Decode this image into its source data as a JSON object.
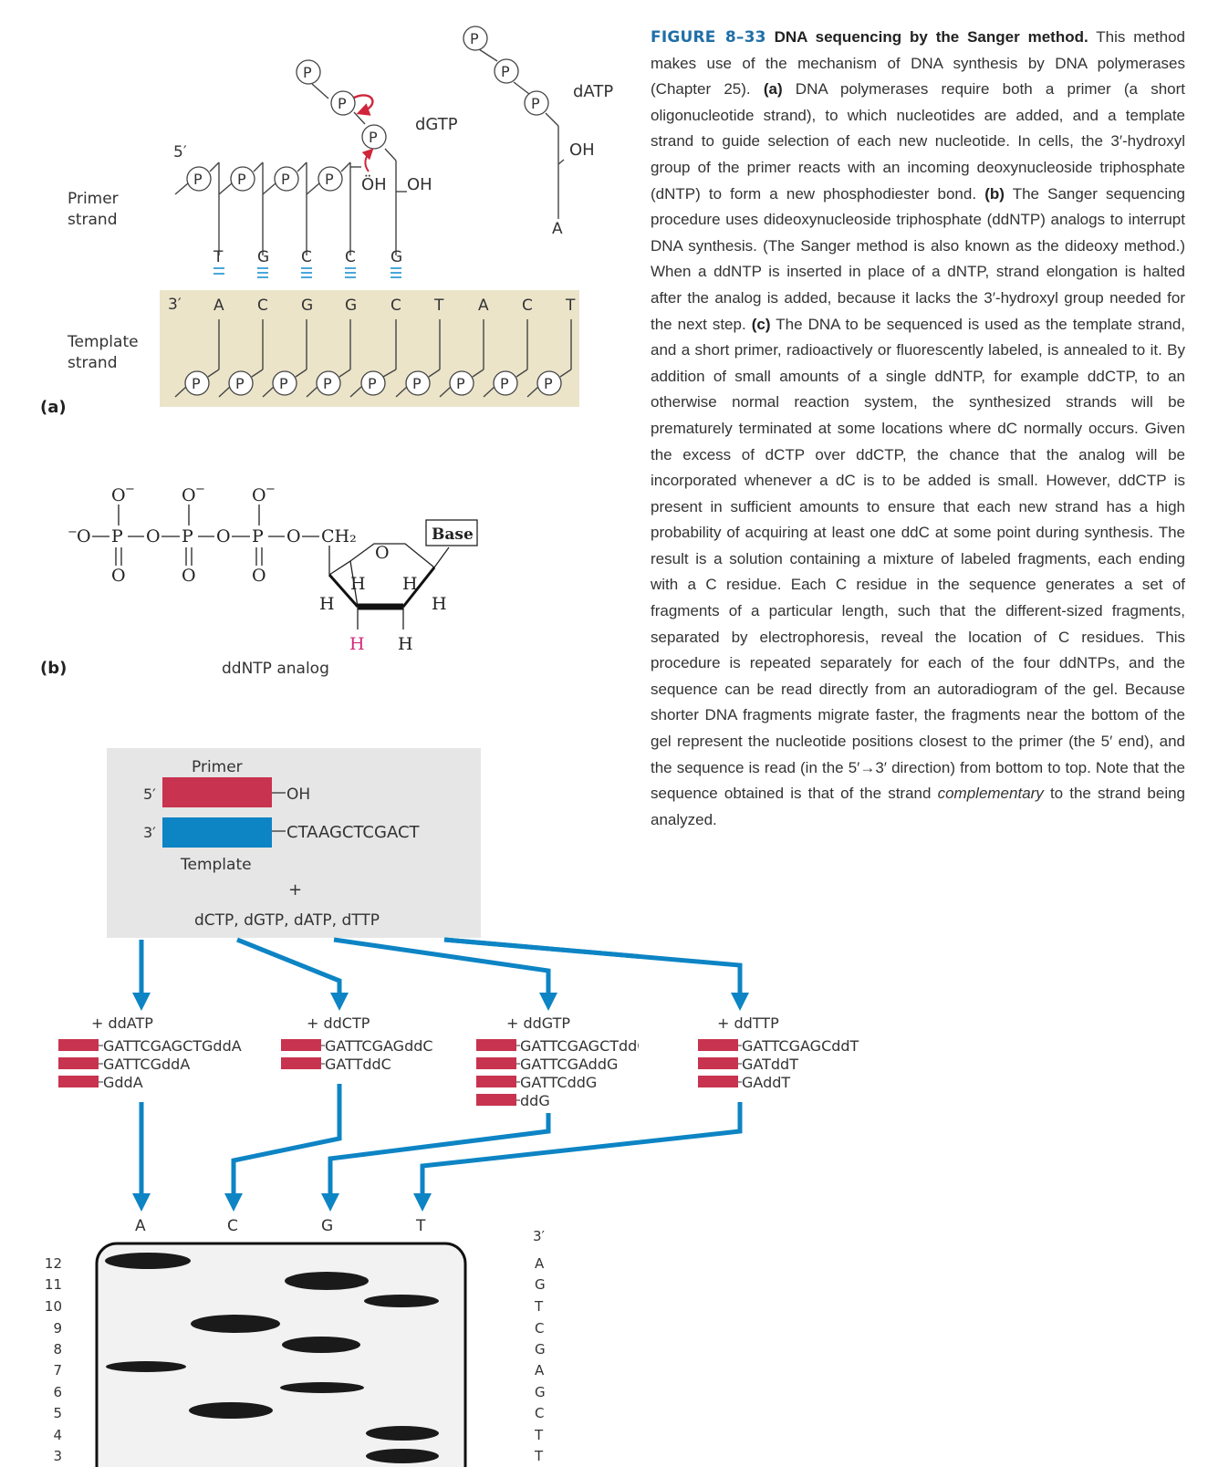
{
  "colors": {
    "accent_blue": "#0d84c4",
    "primer_red": "#c8334f",
    "template_blue": "#0d84c4",
    "panel_tan": "#ebe4c9",
    "panel_gray": "#e6e6e6",
    "caption_number_blue": "#1f6fa8",
    "hbond_blue": "#49a7db",
    "highlight_magenta": "#d0297a"
  },
  "panel_a": {
    "label": "(a)",
    "primer_label": [
      "Primer",
      "strand"
    ],
    "template_label": [
      "Template",
      "strand"
    ],
    "five_prime": "5′",
    "three_prime": "3′",
    "phosphate": "P",
    "primer_bases": [
      "T",
      "G",
      "C",
      "C",
      "G"
    ],
    "template_bases": [
      "A",
      "C",
      "G",
      "G",
      "C",
      "T",
      "A",
      "C",
      "T"
    ],
    "dgtp_label": "dGTP",
    "datp_label": "dATP",
    "hydroxyl": "OH",
    "hydroxyl_attack": "ÖH",
    "datp_base": "A"
  },
  "panel_b": {
    "label": "(b)",
    "caption": "ddNTP analog",
    "o_minus": "O",
    "minus": "−",
    "p": "P",
    "o": "O",
    "ch2": "CH₂",
    "base_box": "Base",
    "h": "H"
  },
  "panel_c": {
    "primer_title": "Primer",
    "template_title": "Template",
    "five_prime": "5′",
    "three_prime": "3′",
    "hydroxyl": "OH",
    "template_seq": "CTAAGCTCGACT",
    "plus": "+",
    "dntps": "dCTP, dGTP, dATP, dTTP",
    "reactions": [
      {
        "label": "+ ddATP",
        "fragments": [
          "GATTCGAGCTGddA",
          "GATTCGddA",
          "GddA"
        ]
      },
      {
        "label": "+ ddCTP",
        "fragments": [
          "GATTCGAGddC",
          "GATTddC"
        ]
      },
      {
        "label": "+ ddGTP",
        "fragments": [
          "GATTCGAGCTddG",
          "GATTCGAddG",
          "GATTCddG",
          "ddG"
        ]
      },
      {
        "label": "+ ddTTP",
        "fragments": [
          "GATTCGAGCddT",
          "GATddT",
          "GAddT"
        ]
      }
    ],
    "lane_labels": [
      "A",
      "C",
      "G",
      "T"
    ],
    "row_numbers": [
      "12",
      "11",
      "10",
      "9",
      "8",
      "7",
      "6",
      "5",
      "4",
      "3"
    ],
    "read_three_prime": "3′",
    "read_sequence": [
      "A",
      "G",
      "T",
      "C",
      "G",
      "A",
      "G",
      "C",
      "T",
      "T"
    ]
  },
  "caption": {
    "figure_number": "FIGURE 8–33",
    "title": "DNA sequencing by the Sanger method.",
    "seg1": " This method makes use of the mechanism of DNA synthesis by DNA polymerases (Chapter 25). ",
    "ref_a": "(a)",
    "seg2": " DNA polymerases require both a primer (a short oligonucleotide strand), to which nucleotides are added, and a template strand to guide selection of each new nucleotide. In cells, the 3′-hydroxyl group of the primer reacts with an incoming deoxynucleoside triphosphate (dNTP) to form a new phosphodiester bond. ",
    "ref_b": "(b)",
    "seg3": " The Sanger sequencing procedure uses dideoxynucleoside triphosphate (ddNTP) analogs to interrupt DNA synthesis. (The Sanger method is also known as the dideoxy method.) When a ddNTP is inserted in place of a dNTP, strand elongation is halted after the analog is added, because it lacks the 3′-hydroxyl group needed for the next step. ",
    "ref_c": "(c)",
    "seg4": " The DNA to be sequenced is used as the template strand, and a short primer, radioactively or fluorescently labeled, is annealed to it. By addition of small amounts of a single ddNTP, for example ddCTP, to an otherwise normal reaction system, the synthesized strands will be prematurely terminated at some locations where dC normally occurs. Given the excess of dCTP over ddCTP, the chance that the analog will be incorporated whenever a dC is to be added is small. However, ddCTP is present in sufficient amounts to ensure that each new strand has a high probability of acquiring at least one ddC at some point during synthesis. The result is a solution containing a mixture of labeled fragments, each ending with a C residue. Each C residue in the sequence generates a set of fragments of a particular length, such that the different-sized fragments, separated by electrophoresis, reveal the location of C residues. This procedure is repeated separately for each of the four ddNTPs, and the sequence can be read directly from an autoradiogram of the gel. Because shorter DNA fragments migrate faster, the fragments near the bottom of the gel represent the nucleotide positions closest to the primer (the 5′ end), and the sequence is read (in the 5′→3′ direction) from bottom to top. Note that the sequence obtained is that of the strand ",
    "seg4_italic": "complementary",
    "seg5": " to the strand being analyzed."
  }
}
